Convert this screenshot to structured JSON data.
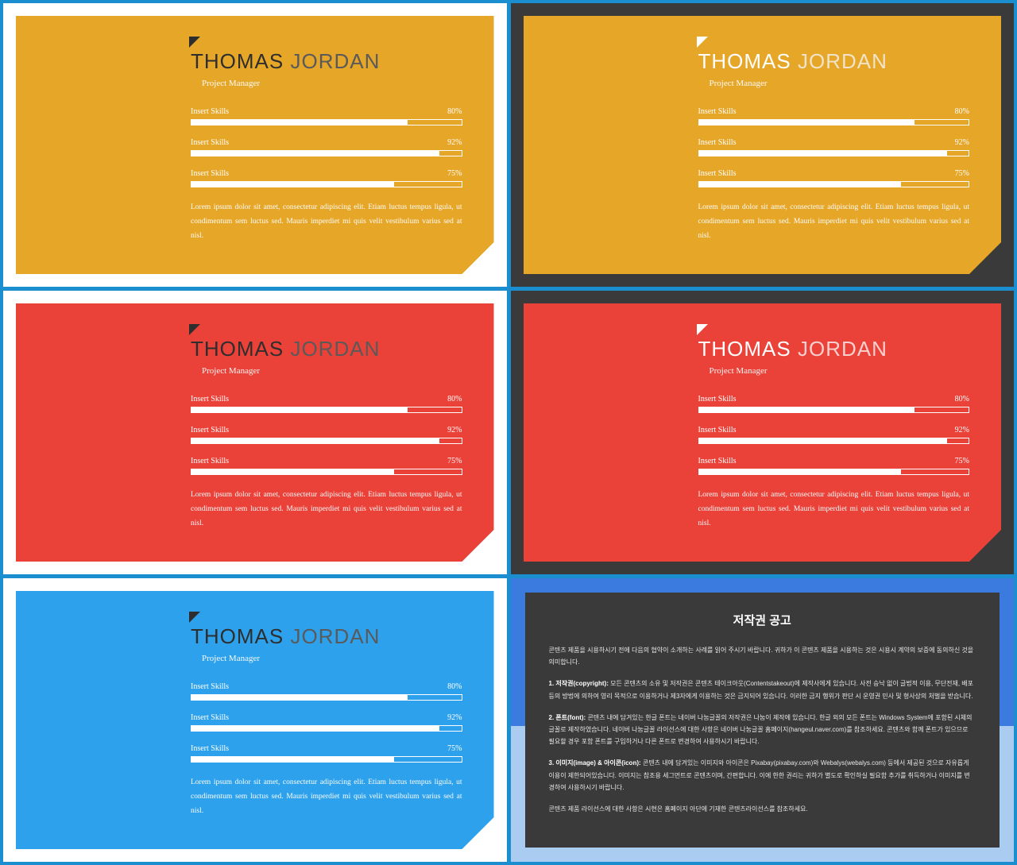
{
  "page_bg": "#1b8ed0",
  "profile": {
    "first_name": "THOMAS",
    "last_name": "JORDAN",
    "subtitle": "Project Manager",
    "skills": [
      {
        "label": "Insert Skills",
        "pct_label": "80%",
        "pct": 80
      },
      {
        "label": "Insert Skills",
        "pct_label": "92%",
        "pct": 92
      },
      {
        "label": "Insert Skills",
        "pct_label": "75%",
        "pct": 75
      }
    ],
    "body": "Lorem ipsum dolor sit amet, consectetur adipiscing elit. Etiam luctus tempus ligula, ut condimentum sem luctus sed. Mauris imperdiet mi quis velit vestibulum varius sed at nisl."
  },
  "slides": [
    {
      "outer_bg": "#ffffff",
      "card_bg": "#e6a628",
      "name_first_color": "#2e2e2e",
      "name_last_color": "#5a5a5a",
      "corner_color": "#2e2e2e"
    },
    {
      "outer_bg": "#3a3a3a",
      "card_bg": "#e6a628",
      "name_first_color": "#ffffff",
      "name_last_color": "#f0e3c8",
      "corner_color": "#ffffff"
    },
    {
      "outer_bg": "#ffffff",
      "card_bg": "#ea4138",
      "name_first_color": "#2e2e2e",
      "name_last_color": "#5a5a5a",
      "corner_color": "#2e2e2e"
    },
    {
      "outer_bg": "#3a3a3a",
      "card_bg": "#ea4138",
      "name_first_color": "#ffffff",
      "name_last_color": "#f7cfcf",
      "corner_color": "#ffffff"
    },
    {
      "outer_bg": "#ffffff",
      "card_bg": "#2ea1ec",
      "name_first_color": "#2e2e2e",
      "name_last_color": "#5a5a5a",
      "corner_color": "#2e2e2e"
    }
  ],
  "copyright": {
    "title": "저작권 공고",
    "p0": "콘텐츠 제품을 시용하시기 전에 다음의 협약이 소개하는 사례를 읽어 주시기 바랍니다. 귀하가 이 콘텐츠 제품을 시용하는 것은 시용시 계약의 보증에 동의하신 것을 의미합니다.",
    "p1_b": "1. 저작권(copyright):",
    "p1": " 모든 콘텐츠의 소유 및 저작권은 콘텐츠 테이크아웃(Contentstakeout)에 제작사에게 있습니다. 사전 승낙 없이 글법적 이용, 무단전재, 배포 등의 방법에 의하여 영리 목적으로 이용하거나 제3자에게 이용하는 것은 금지되어 있습니다. 이러한 금지 행위가 판단 시 운영권 민사 및 형사상의 처벌을 받습니다.",
    "p2_b": "2. 폰트(font):",
    "p2": " 콘텐츠 내에 담겨있는 한글 폰트는 네이버 나눔글꼴의 저작권은 나눔이 제작에 있습니다. 한글 외의 모든 폰트는 Windows System에 포함된 시체의 글꼴로 제작하였습니다. 네이버 나눔글꼴 라이선스에 대한 사항은 네이버 나눔글꼴 홈페이지(hangeul.naver.com)를 참조하세요. 콘텐츠와 함께 폰트가 있으므로 필요할 경우 포함 폰트를 구입하거나 다른 폰트로 변경하여 사용하시기 바랍니다.",
    "p3_b": "3. 이미지(image) & 아이콘(icon):",
    "p3": " 콘텐츠 내에 담겨있는 이미지와 아이콘은 Pixabay(pixabay.com)와 Webalys(webalys.com) 등에서 제공된 것으로 자유롭게 이용이 제한되어있습니다. 이미지는 참조용 세그먼트로 콘텐츠이며, 간편합니다. 이에 한한 권리는 귀하가 별도로 확인하실 필요함 추가를 취득하거나 이미지를 변경하여 사용하시기 바랍니다.",
    "p4": "콘텐츠 제품 라이선스에 대한 사항은 시현은 홈페이지 아단에 기재한 콘텐츠라이선스를 참조하세요."
  }
}
